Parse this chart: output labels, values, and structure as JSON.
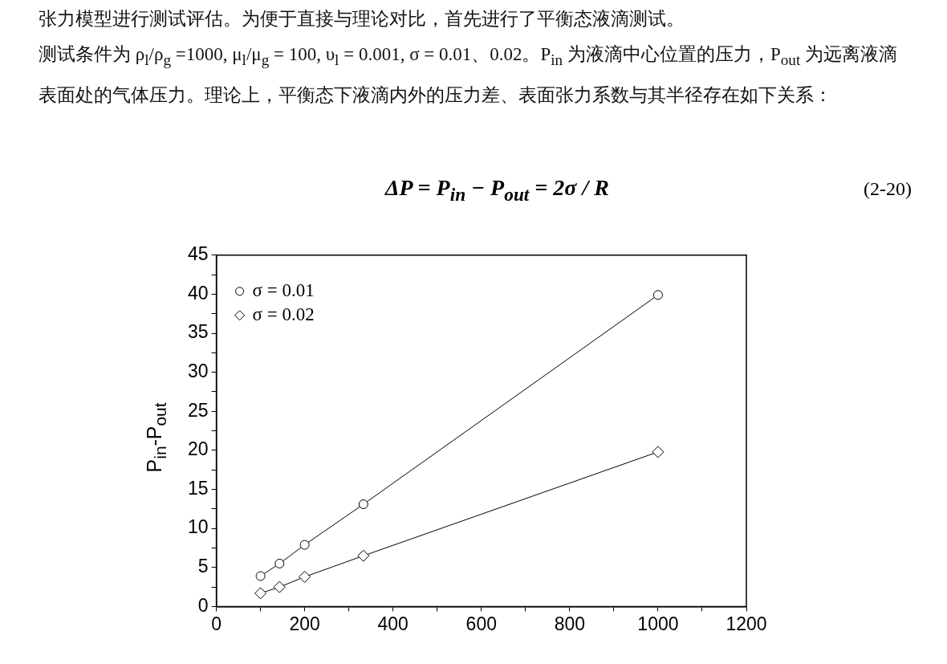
{
  "chart_data": {
    "type": "line",
    "annotations": [
      "张力模型进行测试评估。为便于直接与理论对比，首先进行了平衡态液滴测试。",
      "测试条件为 ρ$_{l}$/ρ$_{g}$ =1000, μ$_{l}$/μ$_{g}$ = 100, υ$_{l}$ = 0.001, σ = 0.01、0.02。P$_{in}$ 为液滴中心位置的压力，P$_{out}$ 为远离液滴表面处的气体压力。理论上，平衡态下液滴内外的压力差、表面张力系数与其半径存在如下关系：",
      "ΔP = P$_{in}$ − P$_{out}$ = 2σ / R",
      "(2-20)"
    ],
    "ylabel": "P$_{in}$-P$_{out}$",
    "x": [
      100,
      143,
      200,
      333,
      1000
    ],
    "series": [
      {
        "name": "σ = 0.01",
        "color": "#000000",
        "marker": "circle",
        "values": [
          3.9,
          5.5,
          7.9,
          13.1,
          39.9
        ]
      },
      {
        "name": "σ = 0.02",
        "color": "#000000",
        "marker": "diamond",
        "values": [
          1.7,
          2.5,
          3.8,
          6.5,
          19.8
        ]
      }
    ],
    "xlim": [
      0,
      1200
    ],
    "xticks": [
      0,
      {
        "value": 100,
        "label": null
      },
      200,
      {
        "value": 300,
        "label": null
      },
      400,
      {
        "value": 500,
        "label": null
      },
      600,
      {
        "value": 700,
        "label": null
      },
      800,
      {
        "value": 900,
        "label": null
      },
      1000,
      {
        "value": 1100,
        "label": null
      },
      1200
    ],
    "ylim": [
      0,
      45
    ],
    "yticks": [
      0,
      {
        "value": 2.5,
        "label": null
      },
      5,
      {
        "value": 7.5,
        "label": null
      },
      10,
      {
        "value": 12.5,
        "label": null
      },
      15,
      {
        "value": 17.5,
        "label": null
      },
      20,
      {
        "value": 22.5,
        "label": null
      },
      25,
      {
        "value": 27.5,
        "label": null
      },
      30,
      {
        "value": 32.5,
        "label": null
      },
      35,
      {
        "value": 37.5,
        "label": null
      },
      40,
      {
        "value": 42.5,
        "label": null
      },
      45
    ],
    "grid": false,
    "legend": "top left",
    "line_style": "solid"
  }
}
